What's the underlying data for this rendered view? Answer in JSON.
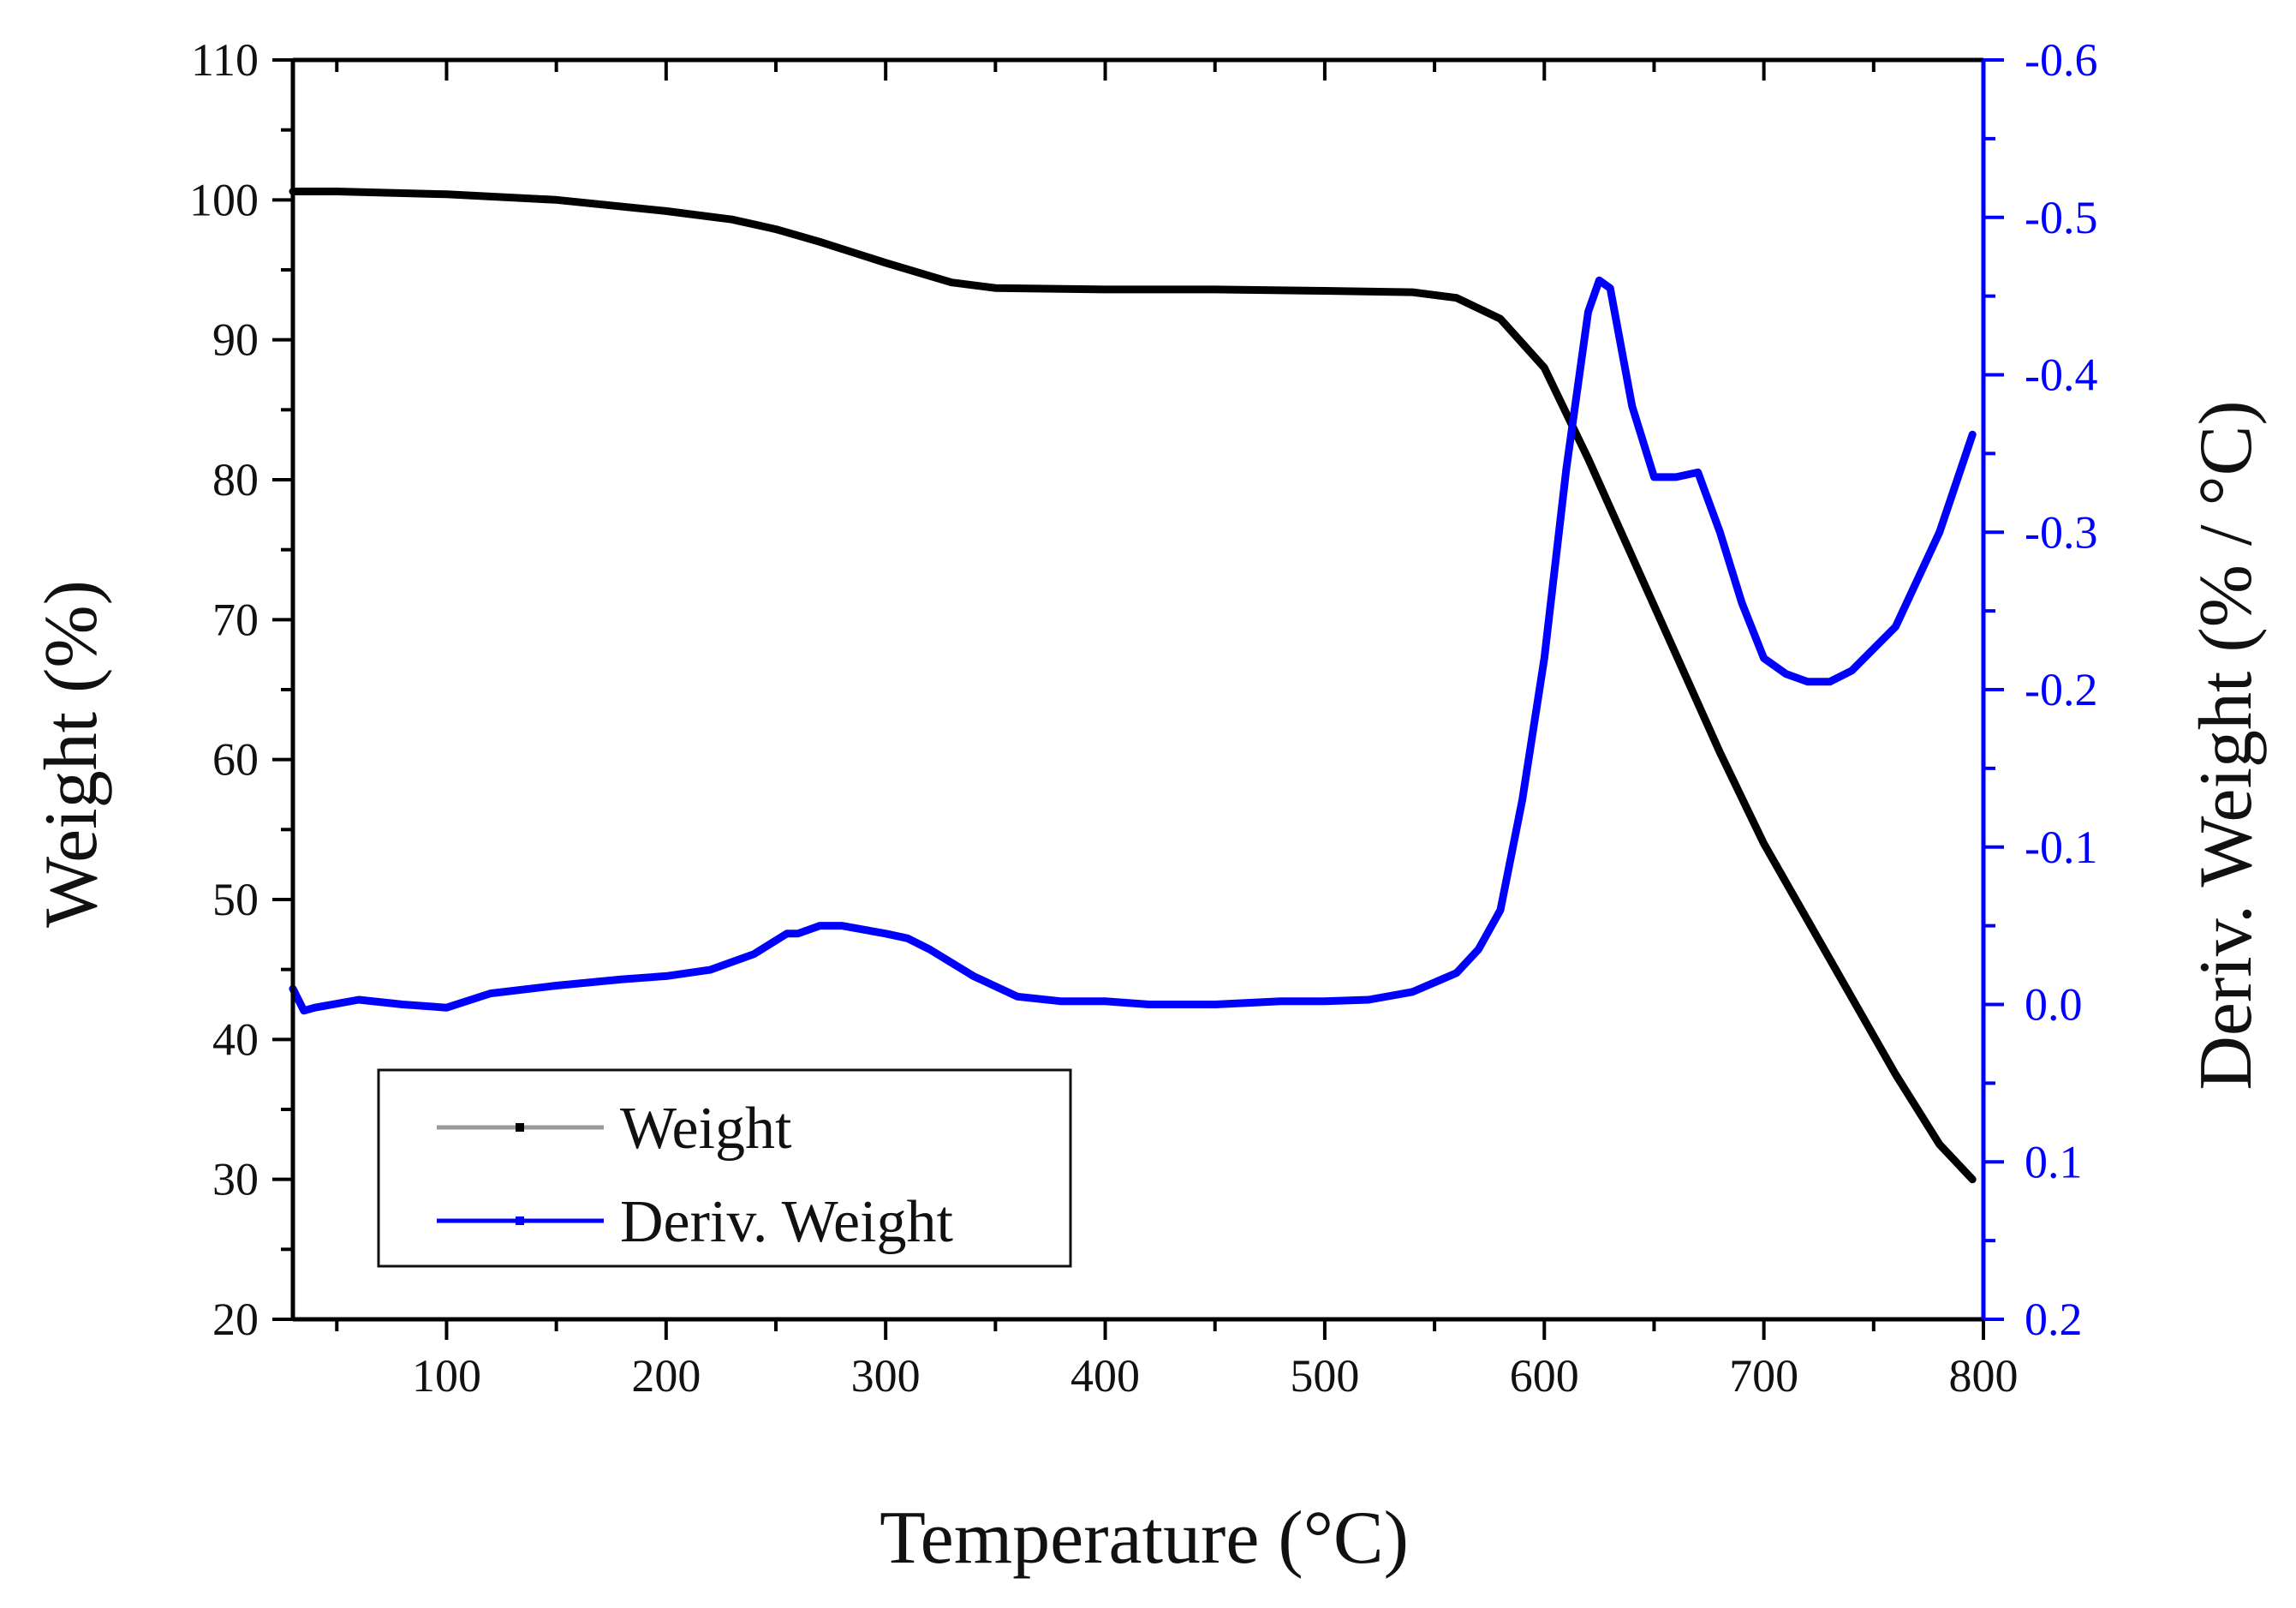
{
  "chart_data": {
    "type": "line",
    "xlabel": "Temperature (°C)",
    "ylabel": "Weight (%)",
    "y2label": "Deriv. Weight (% / °C)",
    "xlim": [
      30,
      800
    ],
    "ylim": [
      20,
      110
    ],
    "y2lim": [
      0.2,
      -0.6
    ],
    "x_ticks": [
      100,
      200,
      300,
      400,
      500,
      600,
      700,
      800
    ],
    "x_tick_labels": [
      "100",
      "200",
      "300",
      "400",
      "500",
      "600",
      "700",
      "800"
    ],
    "y_ticks": [
      20,
      30,
      40,
      50,
      60,
      70,
      80,
      90,
      100,
      110
    ],
    "y_tick_labels": [
      "20",
      "30",
      "40",
      "50",
      "60",
      "70",
      "80",
      "90",
      "100",
      "110"
    ],
    "y2_ticks": [
      0.2,
      0.1,
      0.0,
      -0.1,
      -0.2,
      -0.3,
      -0.4,
      -0.5,
      -0.6
    ],
    "y2_tick_labels": [
      "0.2",
      "0.1",
      "0.0",
      "-0.1",
      "-0.2",
      "-0.3",
      "-0.4",
      "-0.5",
      "-0.6"
    ],
    "legend": {
      "placement": "lower-left",
      "entries": [
        "Weight",
        "Deriv. Weight"
      ]
    },
    "series": [
      {
        "name": "Weight",
        "axis": "left",
        "color": "#000000",
        "x": [
          30,
          50,
          100,
          150,
          200,
          230,
          250,
          270,
          300,
          330,
          350,
          400,
          450,
          500,
          540,
          560,
          580,
          600,
          620,
          640,
          660,
          680,
          700,
          720,
          740,
          760,
          780,
          795
        ],
        "y": [
          100.6,
          100.6,
          100.4,
          100.0,
          99.2,
          98.6,
          97.9,
          97.0,
          95.5,
          94.1,
          93.7,
          93.6,
          93.6,
          93.5,
          93.4,
          93.0,
          91.5,
          88.0,
          81.5,
          74.5,
          67.5,
          60.5,
          54.0,
          48.5,
          43.0,
          37.5,
          32.5,
          30.0
        ]
      },
      {
        "name": "Deriv. Weight",
        "axis": "right",
        "color": "#0000ff",
        "x": [
          30,
          35,
          40,
          60,
          80,
          100,
          120,
          150,
          180,
          200,
          220,
          240,
          255,
          260,
          270,
          280,
          300,
          310,
          320,
          340,
          360,
          380,
          400,
          420,
          450,
          480,
          500,
          520,
          540,
          560,
          570,
          580,
          590,
          600,
          610,
          620,
          625,
          630,
          640,
          650,
          660,
          670,
          680,
          690,
          700,
          710,
          720,
          730,
          740,
          760,
          780,
          795
        ],
        "y": [
          -0.01,
          0.004,
          0.002,
          -0.003,
          0.0,
          0.002,
          -0.007,
          -0.012,
          -0.016,
          -0.018,
          -0.022,
          -0.032,
          -0.045,
          -0.045,
          -0.05,
          -0.05,
          -0.045,
          -0.042,
          -0.035,
          -0.018,
          -0.005,
          -0.002,
          -0.002,
          0.0,
          0.0,
          -0.002,
          -0.002,
          -0.003,
          -0.008,
          -0.02,
          -0.035,
          -0.06,
          -0.13,
          -0.22,
          -0.34,
          -0.44,
          -0.46,
          -0.455,
          -0.38,
          -0.335,
          -0.335,
          -0.338,
          -0.3,
          -0.255,
          -0.22,
          -0.21,
          -0.205,
          -0.205,
          -0.212,
          -0.24,
          -0.3,
          -0.362
        ]
      }
    ]
  },
  "colors": {
    "left_axis": "#000000",
    "right_axis": "#0000ff",
    "legend_line_weight": "#9a9a9a",
    "legend_line_deriv": "#0000ff"
  }
}
